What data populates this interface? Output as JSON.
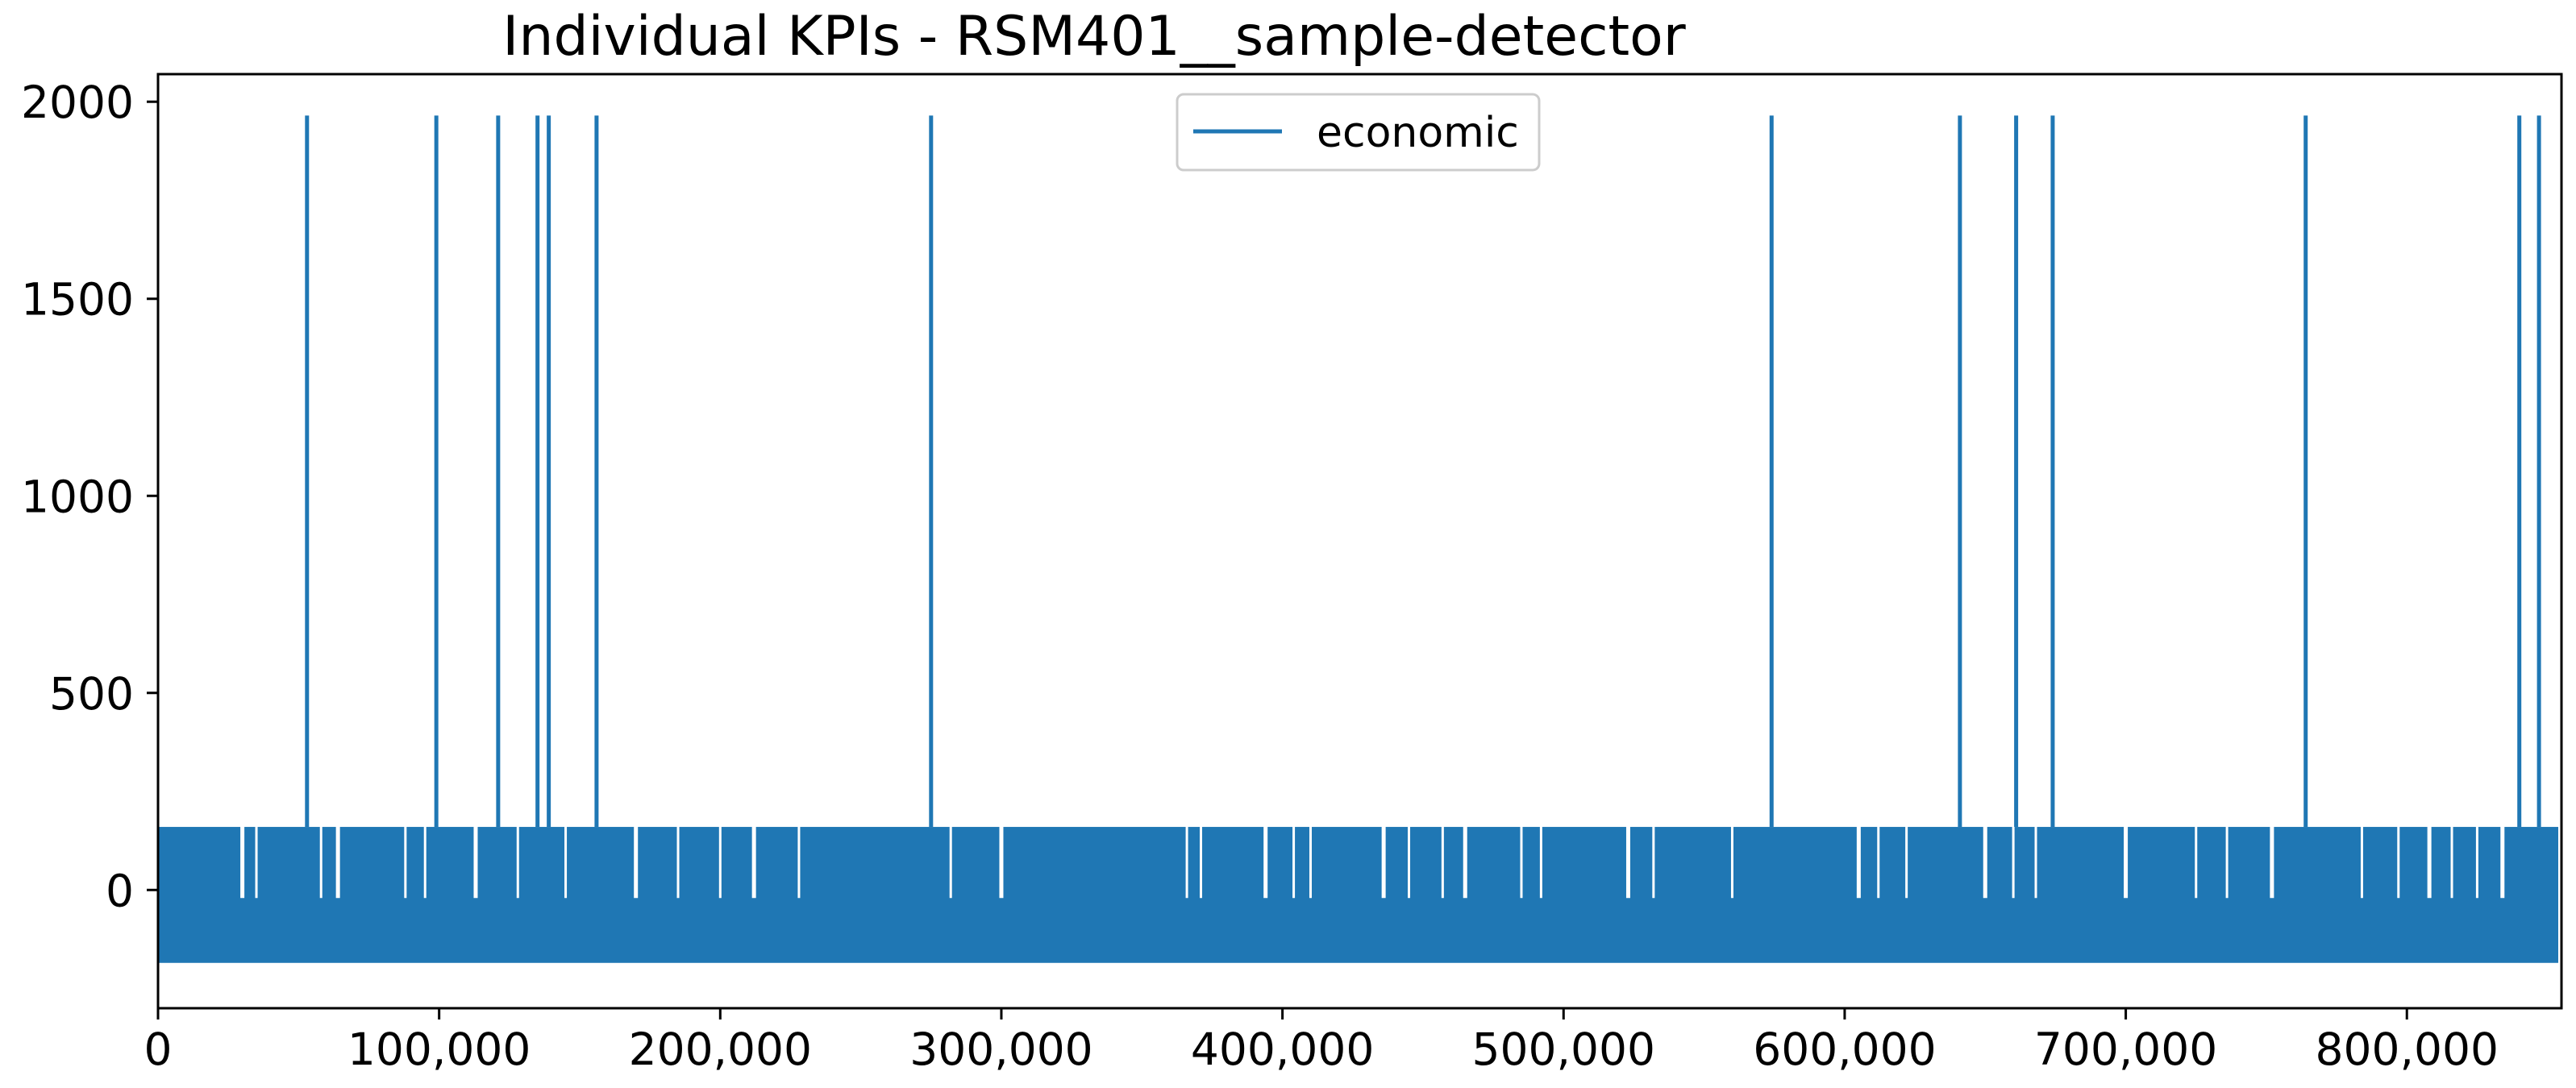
{
  "chart_data": {
    "type": "line",
    "title": "Individual KPIs - RSM401__sample-detector",
    "xlabel": "",
    "ylabel": "",
    "xlim": [
      0,
      855000
    ],
    "ylim": [
      -300,
      2070
    ],
    "x_ticks": [
      0,
      100000,
      200000,
      300000,
      400000,
      500000,
      600000,
      700000,
      800000
    ],
    "x_tick_labels": [
      "0",
      "100,000",
      "200,000",
      "300,000",
      "400,000",
      "500,000",
      "600,000",
      "700,000",
      "800,000"
    ],
    "y_ticks": [
      0,
      500,
      1000,
      1500,
      2000
    ],
    "y_tick_labels": [
      "0",
      "500",
      "1000",
      "1500",
      "2000"
    ],
    "grid": false,
    "legend_position": "top-center",
    "series": [
      {
        "name": "economic",
        "color": "#1f77b4",
        "band_low": -185,
        "band_high": 160,
        "spike_value": 1965,
        "spike_x": [
          53000,
          99000,
          121000,
          135000,
          139000,
          156000,
          275000,
          574000,
          641000,
          661000,
          674000,
          764000,
          840000,
          847000
        ],
        "gap_x": [
          30000,
          35000,
          58000,
          64000,
          88000,
          95000,
          113000,
          128000,
          145000,
          170000,
          185000,
          200000,
          212000,
          228000,
          282000,
          300000,
          366000,
          371000,
          394000,
          404000,
          410000,
          436000,
          445000,
          457000,
          465000,
          485000,
          492000,
          523000,
          532000,
          560000,
          605000,
          612000,
          622000,
          650000,
          660000,
          668000,
          700000,
          725000,
          736000,
          752000,
          784000,
          797000,
          808000,
          816000,
          825000,
          834000
        ]
      }
    ]
  }
}
